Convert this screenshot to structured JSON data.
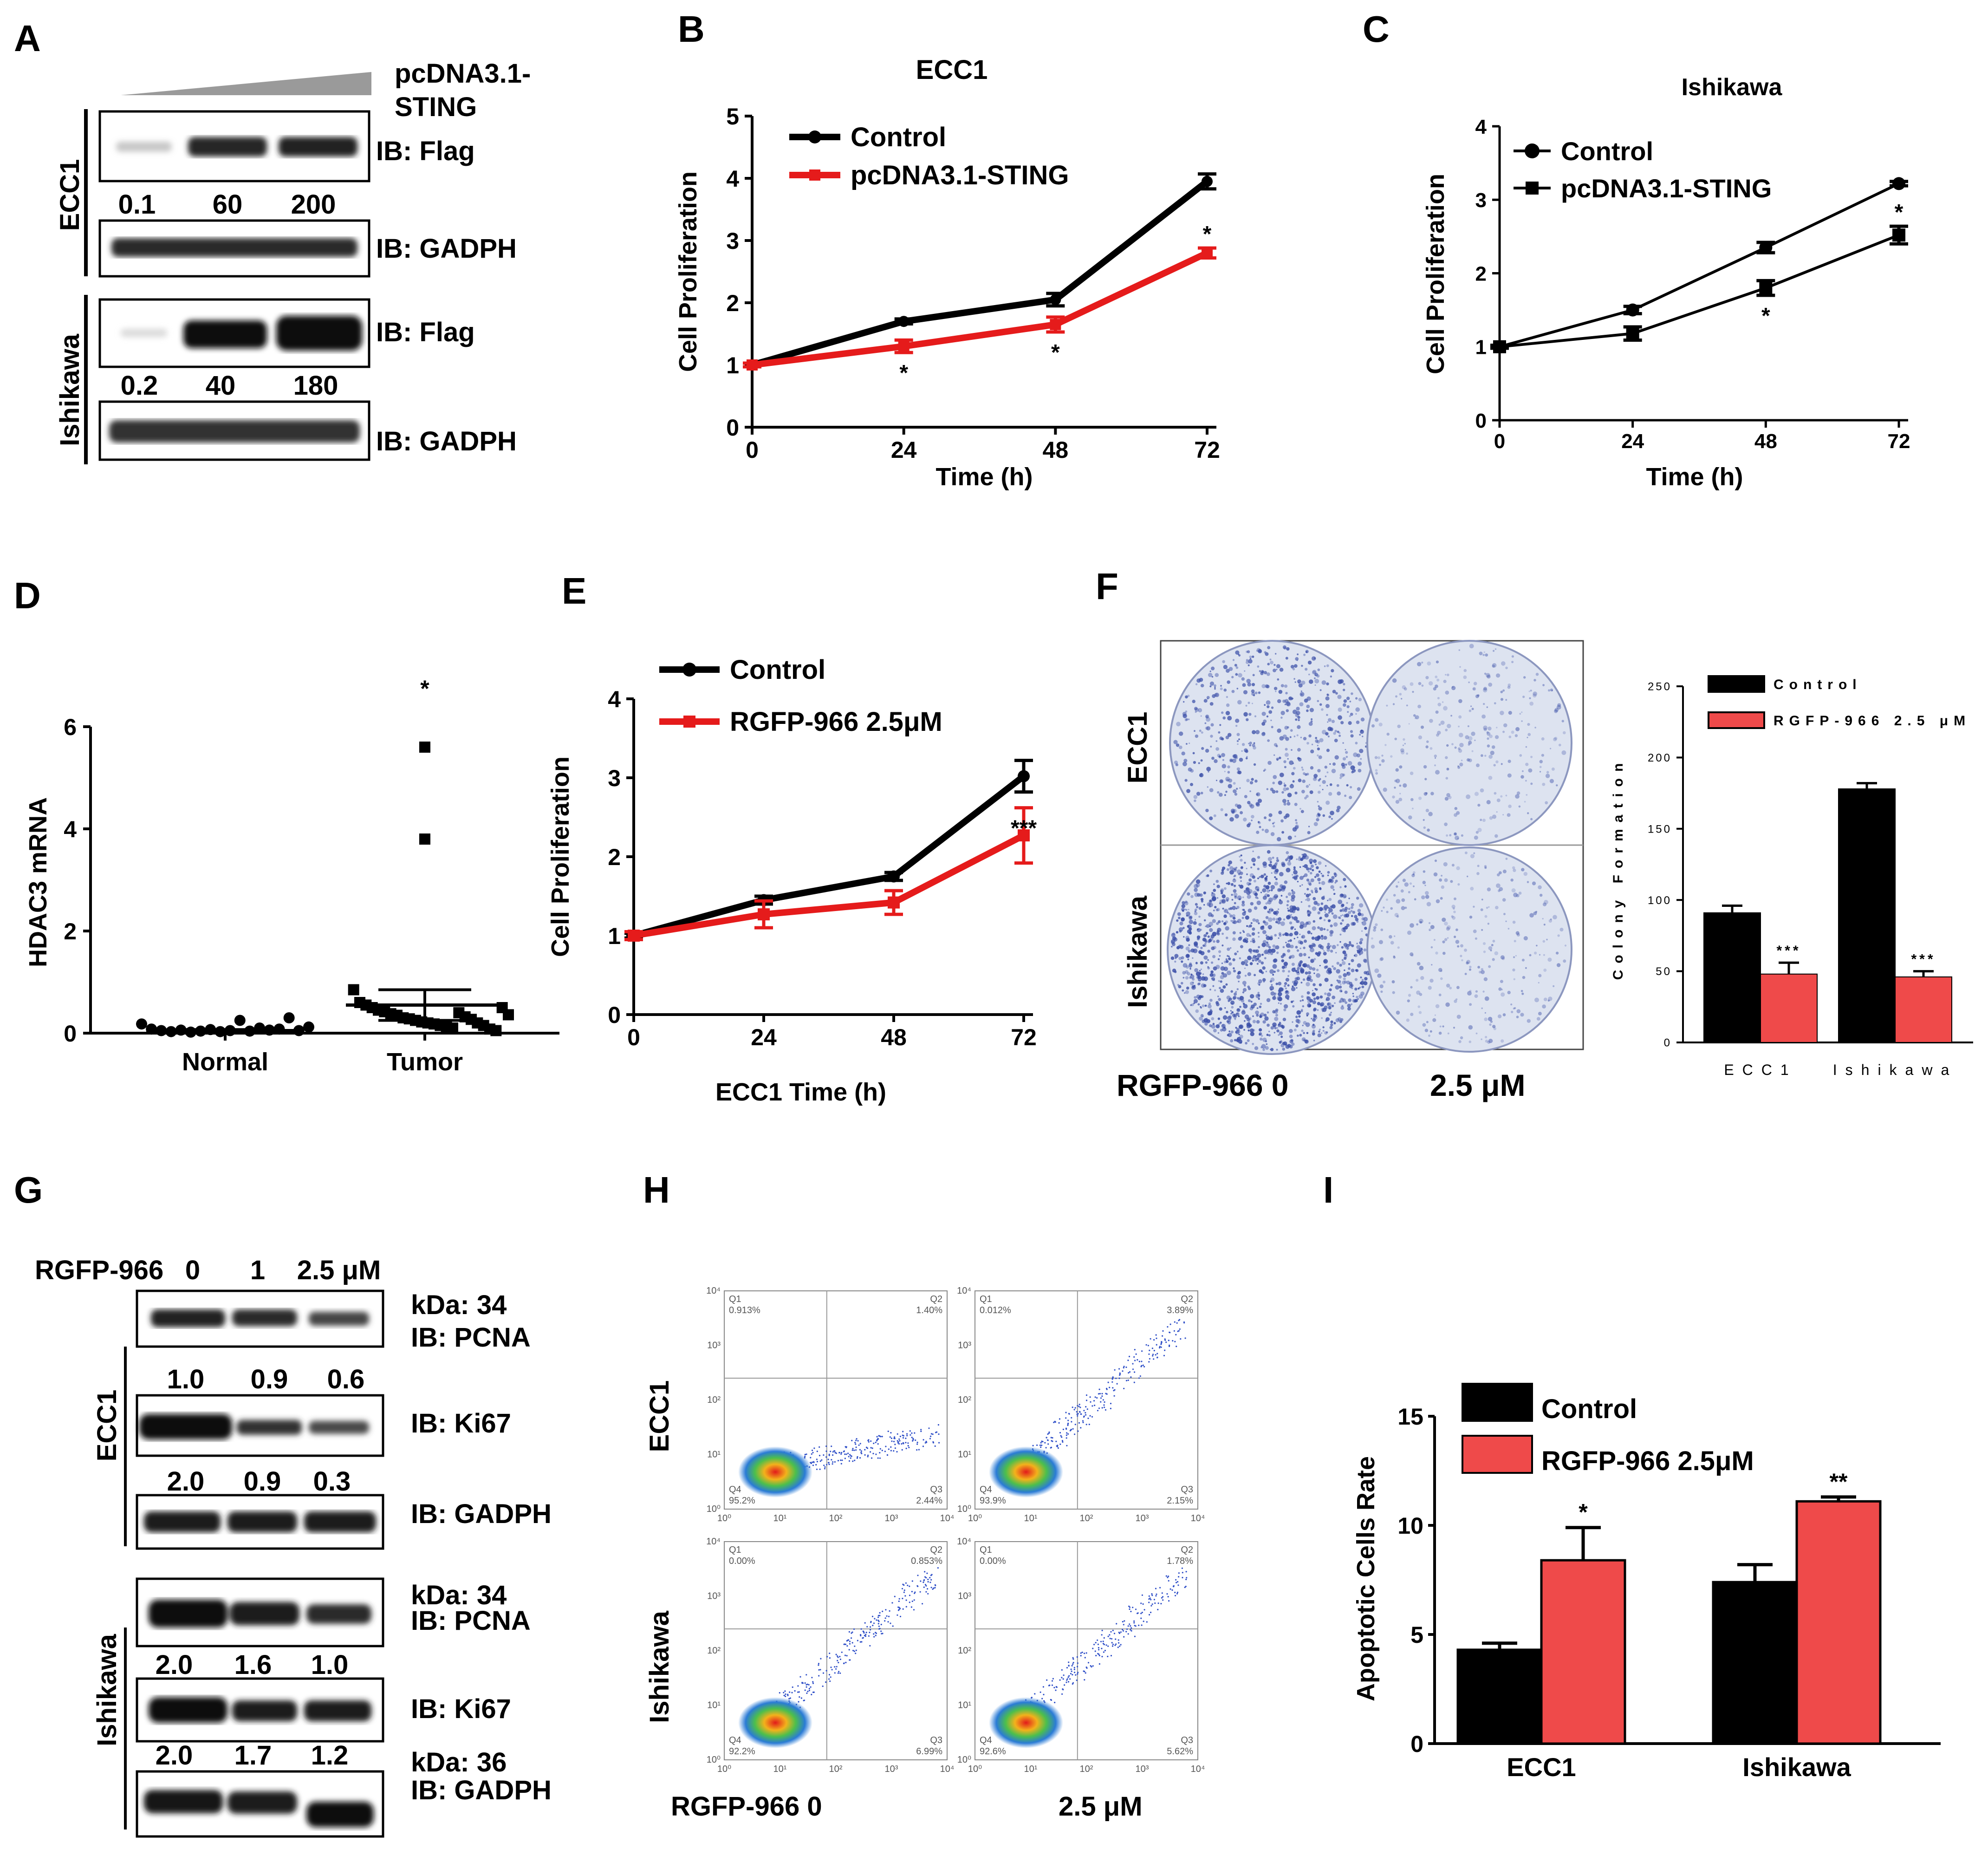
{
  "colors": {
    "control": "#000000",
    "treated": "#e51b1b",
    "treated_bar": "#ef4a4a",
    "colony": "#3b4fa8",
    "dish": "#dde3f0"
  },
  "panels": {
    "A": {
      "label": "A",
      "treatment": [
        "pcDNA3.1-",
        "STING"
      ],
      "ecc1": {
        "cell_line": "ECC1",
        "blot1": "IB: Flag",
        "values": [
          "0.1",
          "60",
          "200"
        ],
        "blot2": "IB: GADPH"
      },
      "ishikawa": {
        "cell_line": "Ishikawa",
        "blot1": "IB: Flag",
        "values": [
          "0.2",
          "40",
          "180"
        ],
        "blot2": "IB: GADPH"
      }
    },
    "B": {
      "label": "B"
    },
    "C": {
      "label": "C"
    },
    "D": {
      "label": "D"
    },
    "E": {
      "label": "E"
    },
    "F": {
      "label": "F",
      "row_labels": [
        "ECC1",
        "Ishikawa"
      ],
      "dose_label": "RGFP-966 0",
      "dose_high": "2.5 μM"
    },
    "G": {
      "label": "G",
      "header": {
        "drug": "RGFP-966",
        "doses": [
          "0",
          "1",
          "2.5 μM"
        ]
      },
      "ecc1": {
        "cell_line": "ECC1",
        "kda1": "kDa: 34",
        "pcna": "IB: PCNA",
        "pcna_values": [
          "1.0",
          "0.9",
          "0.6"
        ],
        "ki67": "IB: Ki67",
        "ki67_values": [
          "2.0",
          "0.9",
          "0.3"
        ],
        "gadph": "IB: GADPH"
      },
      "ishikawa": {
        "cell_line": "Ishikawa",
        "kda1": "kDa: 34",
        "pcna": "IB: PCNA",
        "pcna_values": [
          "2.0",
          "1.6",
          "1.0"
        ],
        "ki67": "IB: Ki67",
        "ki67_values": [
          "2.0",
          "1.7",
          "1.2"
        ],
        "kda2": "kDa: 36",
        "gadph": "IB: GADPH"
      }
    },
    "H": {
      "label": "H",
      "row_labels": [
        "ECC1",
        "Ishikawa"
      ],
      "dose_label": "RGFP-966  0",
      "dose_high": "2.5 μM",
      "plots": [
        {
          "q1": "Q1",
          "q1v": "0.913%",
          "q2": "Q2",
          "q2v": "1.40%",
          "q3": "Q3",
          "q3v": "2.44%",
          "q4": "Q4",
          "q4v": "95.2%"
        },
        {
          "q1": "Q1",
          "q1v": "0.012%",
          "q2": "Q2",
          "q2v": "3.89%",
          "q3": "Q3",
          "q3v": "2.15%",
          "q4": "Q4",
          "q4v": "93.9%"
        },
        {
          "q1": "Q1",
          "q1v": "0.00%",
          "q2": "Q2",
          "q2v": "0.853%",
          "q3": "Q3",
          "q3v": "6.99%",
          "q4": "Q4",
          "q4v": "92.2%"
        },
        {
          "q1": "Q1",
          "q1v": "0.00%",
          "q2": "Q2",
          "q2v": "1.78%",
          "q3": "Q3",
          "q3v": "5.62%",
          "q4": "Q4",
          "q4v": "92.6%"
        }
      ],
      "axis_ticks": [
        "10⁰",
        "10¹",
        "10²",
        "10³",
        "10⁴"
      ]
    },
    "I": {
      "label": "I"
    }
  },
  "chart_data": [
    {
      "id": "B",
      "type": "line",
      "title": "ECC1",
      "xlabel": "Time (h)",
      "ylabel": "Cell Proliferation",
      "x": [
        0,
        24,
        48,
        72
      ],
      "xlim": [
        0,
        72
      ],
      "ylim": [
        0,
        5
      ],
      "yticks": [
        0,
        1,
        2,
        3,
        4,
        5
      ],
      "series": [
        {
          "name": "Control",
          "values": [
            1.0,
            1.7,
            2.05,
            3.95
          ],
          "errors": [
            0.03,
            0.04,
            0.1,
            0.12
          ]
        },
        {
          "name": "pcDNA3.1-STING",
          "values": [
            1.0,
            1.3,
            1.65,
            2.8
          ],
          "errors": [
            0.03,
            0.1,
            0.12,
            0.08
          ]
        }
      ],
      "annotations": [
        {
          "x": 24,
          "text": "*"
        },
        {
          "x": 48,
          "text": "*"
        },
        {
          "x": 72,
          "text": "*"
        }
      ]
    },
    {
      "id": "C",
      "type": "line",
      "title": "Ishikawa",
      "xlabel": "Time (h)",
      "ylabel": "Cell Proliferation",
      "x": [
        0,
        24,
        48,
        72
      ],
      "xlim": [
        0,
        72
      ],
      "ylim": [
        0,
        4
      ],
      "yticks": [
        0,
        1,
        2,
        3,
        4
      ],
      "series": [
        {
          "name": "Control",
          "values": [
            1.0,
            1.5,
            2.35,
            3.22
          ],
          "errors": [
            0.02,
            0.05,
            0.07,
            0.03
          ]
        },
        {
          "name": "pcDNA3.1-STING",
          "values": [
            1.0,
            1.18,
            1.8,
            2.52
          ],
          "errors": [
            0.02,
            0.09,
            0.1,
            0.12
          ]
        }
      ],
      "annotations": [
        {
          "x": 48,
          "text": "*"
        },
        {
          "x": 72,
          "text": "*"
        }
      ]
    },
    {
      "id": "D",
      "type": "scatter",
      "title": "",
      "xlabel": "",
      "ylabel": "HDAC3 mRNA",
      "categories": [
        "Normal",
        "Tumor"
      ],
      "ylim": [
        0,
        6
      ],
      "yticks": [
        0,
        2,
        4,
        6
      ],
      "groups": [
        {
          "name": "Normal",
          "marker": "circle",
          "mean": 0.05,
          "sem": 0.02,
          "values": [
            0.18,
            0.08,
            0.05,
            0.03,
            0.06,
            0.02,
            0.04,
            0.07,
            0.03,
            0.05,
            0.25,
            0.04,
            0.1,
            0.06,
            0.08,
            0.3,
            0.05,
            0.12
          ]
        },
        {
          "name": "Tumor",
          "marker": "square",
          "mean": 0.55,
          "sem": 0.3,
          "annotation": "*",
          "values": [
            5.6,
            3.8,
            0.85,
            0.6,
            0.55,
            0.5,
            0.45,
            0.42,
            0.38,
            0.35,
            0.3,
            0.28,
            0.25,
            0.22,
            0.2,
            0.18,
            0.15,
            0.12,
            0.1,
            0.4,
            0.32,
            0.27,
            0.2,
            0.15,
            0.08,
            0.05,
            0.5,
            0.36
          ]
        }
      ]
    },
    {
      "id": "E",
      "type": "line",
      "title": "",
      "xlabel": "ECC1 Time (h)",
      "ylabel": "Cell Proliferation",
      "x": [
        0,
        24,
        48,
        72
      ],
      "xlim": [
        0,
        72
      ],
      "ylim": [
        0,
        4
      ],
      "yticks": [
        0,
        1,
        2,
        3,
        4
      ],
      "series": [
        {
          "name": "Control",
          "values": [
            1.0,
            1.45,
            1.75,
            3.02
          ],
          "errors": [
            0.03,
            0.05,
            0.05,
            0.2
          ]
        },
        {
          "name": "RGFP-966 2.5μM",
          "values": [
            1.0,
            1.27,
            1.42,
            2.27
          ],
          "errors": [
            0.05,
            0.17,
            0.15,
            0.35
          ]
        }
      ],
      "annotations": [
        {
          "x": 72,
          "text": "***"
        }
      ]
    },
    {
      "id": "F",
      "type": "bar",
      "title": "",
      "xlabel": "",
      "ylabel": "Colony Formation",
      "categories": [
        "ECC1",
        "Ishikawa"
      ],
      "ylim": [
        0,
        250
      ],
      "yticks": [
        0,
        50,
        100,
        150,
        200,
        250
      ],
      "series": [
        {
          "name": "Control",
          "values": [
            91,
            178
          ],
          "errors": [
            5,
            4
          ]
        },
        {
          "name": "RGFP-966 2.5 μM",
          "values": [
            48,
            46
          ],
          "errors": [
            8,
            4
          ]
        }
      ],
      "annotations": [
        {
          "category": "ECC1",
          "text": "***"
        },
        {
          "category": "Ishikawa",
          "text": "***"
        }
      ]
    },
    {
      "id": "I",
      "type": "bar",
      "title": "",
      "xlabel": "",
      "ylabel": "Apoptotic Cells Rate",
      "categories": [
        "ECC1",
        "Ishikawa"
      ],
      "ylim": [
        0,
        15
      ],
      "yticks": [
        0,
        5,
        10,
        15
      ],
      "series": [
        {
          "name": "Control",
          "values": [
            4.3,
            7.4
          ],
          "errors": [
            0.3,
            0.8
          ]
        },
        {
          "name": "RGFP-966 2.5μM",
          "values": [
            8.4,
            11.1
          ],
          "errors": [
            1.5,
            0.2
          ]
        }
      ],
      "annotations": [
        {
          "category": "ECC1",
          "text": "*"
        },
        {
          "category": "Ishikawa",
          "text": "**"
        }
      ]
    }
  ]
}
